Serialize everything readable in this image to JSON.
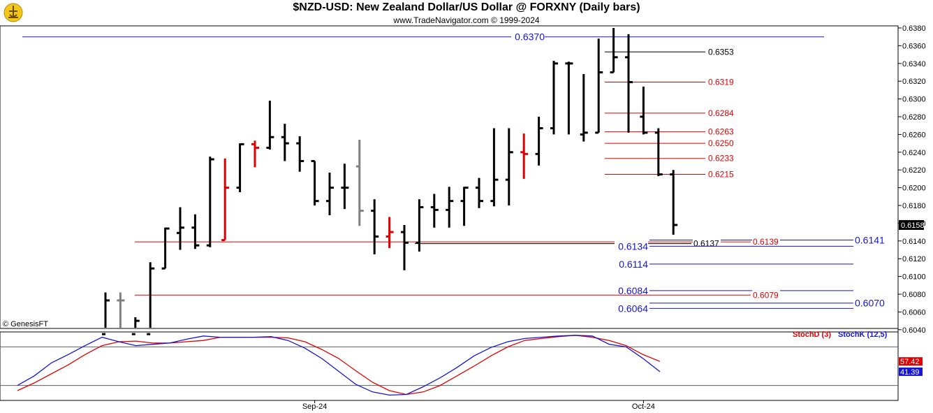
{
  "header": {
    "title": "$NZD-USD:  New Zealand Dollar/US Dollar @ FORXNY  (Daily bars)",
    "subtitle": "www.TradeNavigator.com © 1999-2024",
    "credit": "© GenesisFT"
  },
  "colors": {
    "bull": "#000000",
    "reversal": "#e00000",
    "neutral": "#808080",
    "blue": "#1515d6",
    "red": "#e00000"
  },
  "chart_data": [
    {
      "type": "ohlc",
      "title": "$NZD-USD:  New Zealand Dollar/US Dollar @ FORXNY  (Daily bars)",
      "ylim": [
        0.6034,
        0.6383
      ],
      "yticks": [
        "0.6380",
        "0.6360",
        "0.6340",
        "0.6320",
        "0.6300",
        "0.6280",
        "0.6260",
        "0.6240",
        "0.6220",
        "0.6200",
        "0.6180",
        "0.6160",
        "0.6140",
        "0.6120",
        "0.6100",
        "0.6080",
        "0.6060",
        "0.6040"
      ],
      "xlabels": [
        {
          "label": "Sep-24",
          "index": 14
        },
        {
          "label": "Oct-24",
          "index": 36
        }
      ],
      "last_price": "0.6158",
      "bars": [
        {
          "o": 0.6035,
          "h": 0.6082,
          "l": 0.6035,
          "c": 0.6073,
          "color": "black"
        },
        {
          "o": 0.6073,
          "h": 0.6082,
          "l": 0.6035,
          "c": 0.6073,
          "color": "gray"
        },
        {
          "o": 0.6035,
          "h": 0.6054,
          "l": 0.6035,
          "c": 0.605,
          "color": "black"
        },
        {
          "o": 0.6035,
          "h": 0.6116,
          "l": 0.6035,
          "c": 0.6109,
          "color": "black"
        },
        {
          "o": 0.6109,
          "h": 0.6155,
          "l": 0.6109,
          "c": 0.6154,
          "color": "black"
        },
        {
          "o": 0.6149,
          "h": 0.6178,
          "l": 0.613,
          "c": 0.6155,
          "color": "black"
        },
        {
          "o": 0.6155,
          "h": 0.617,
          "l": 0.6131,
          "c": 0.6135,
          "color": "black"
        },
        {
          "o": 0.6135,
          "h": 0.6235,
          "l": 0.6133,
          "c": 0.6232,
          "color": "black"
        },
        {
          "o": 0.6141,
          "h": 0.6233,
          "l": 0.6141,
          "c": 0.62,
          "color": "red"
        },
        {
          "o": 0.62,
          "h": 0.625,
          "l": 0.6195,
          "c": 0.6249,
          "color": "black"
        },
        {
          "o": 0.6249,
          "h": 0.6253,
          "l": 0.6223,
          "c": 0.6245,
          "color": "red"
        },
        {
          "o": 0.6245,
          "h": 0.6298,
          "l": 0.6243,
          "c": 0.6257,
          "color": "black"
        },
        {
          "o": 0.6257,
          "h": 0.6272,
          "l": 0.623,
          "c": 0.625,
          "color": "black"
        },
        {
          "o": 0.625,
          "h": 0.6258,
          "l": 0.6218,
          "c": 0.623,
          "color": "black"
        },
        {
          "o": 0.623,
          "h": 0.623,
          "l": 0.618,
          "c": 0.6185,
          "color": "black"
        },
        {
          "o": 0.6185,
          "h": 0.6217,
          "l": 0.6169,
          "c": 0.62,
          "color": "black"
        },
        {
          "o": 0.62,
          "h": 0.6227,
          "l": 0.6176,
          "c": 0.62,
          "color": "black"
        },
        {
          "o": 0.6224,
          "h": 0.6254,
          "l": 0.6157,
          "c": 0.6174,
          "color": "gray"
        },
        {
          "o": 0.6174,
          "h": 0.6187,
          "l": 0.6125,
          "c": 0.6145,
          "color": "black"
        },
        {
          "o": 0.6145,
          "h": 0.6167,
          "l": 0.6132,
          "c": 0.615,
          "color": "red"
        },
        {
          "o": 0.615,
          "h": 0.6158,
          "l": 0.6107,
          "c": 0.6138,
          "color": "black"
        },
        {
          "o": 0.6138,
          "h": 0.6187,
          "l": 0.6128,
          "c": 0.6178,
          "color": "black"
        },
        {
          "o": 0.6178,
          "h": 0.6193,
          "l": 0.6155,
          "c": 0.6175,
          "color": "black"
        },
        {
          "o": 0.6175,
          "h": 0.6201,
          "l": 0.6155,
          "c": 0.6185,
          "color": "black"
        },
        {
          "o": 0.6185,
          "h": 0.6201,
          "l": 0.6157,
          "c": 0.62,
          "color": "black"
        },
        {
          "o": 0.62,
          "h": 0.6211,
          "l": 0.6177,
          "c": 0.6185,
          "color": "black"
        },
        {
          "o": 0.6185,
          "h": 0.6267,
          "l": 0.6179,
          "c": 0.6209,
          "color": "black"
        },
        {
          "o": 0.6209,
          "h": 0.6267,
          "l": 0.618,
          "c": 0.624,
          "color": "black"
        },
        {
          "o": 0.624,
          "h": 0.6261,
          "l": 0.621,
          "c": 0.6238,
          "color": "red"
        },
        {
          "o": 0.6238,
          "h": 0.628,
          "l": 0.6225,
          "c": 0.6267,
          "color": "black"
        },
        {
          "o": 0.6267,
          "h": 0.6343,
          "l": 0.626,
          "c": 0.634,
          "color": "black"
        },
        {
          "o": 0.634,
          "h": 0.6342,
          "l": 0.626,
          "c": 0.634,
          "color": "black"
        },
        {
          "o": 0.626,
          "h": 0.6328,
          "l": 0.6252,
          "c": 0.6262,
          "color": "black"
        },
        {
          "o": 0.6262,
          "h": 0.6368,
          "l": 0.6262,
          "c": 0.633,
          "color": "black"
        },
        {
          "o": 0.633,
          "h": 0.638,
          "l": 0.633,
          "c": 0.6347,
          "color": "black"
        },
        {
          "o": 0.6347,
          "h": 0.6373,
          "l": 0.6262,
          "c": 0.6319,
          "color": "black"
        },
        {
          "o": 0.628,
          "h": 0.6314,
          "l": 0.626,
          "c": 0.6262,
          "color": "black"
        },
        {
          "o": 0.6262,
          "h": 0.6267,
          "l": 0.6213,
          "c": 0.6215,
          "color": "black"
        },
        {
          "o": 0.6215,
          "h": 0.622,
          "l": 0.6147,
          "c": 0.6158,
          "color": "black"
        }
      ],
      "levels": [
        {
          "value": 0.637,
          "label": "0.6370",
          "color": "blue",
          "from": 32,
          "to": 1180,
          "labelSide": "left",
          "labelX": 780
        },
        {
          "value": 0.6353,
          "label": "0.6353",
          "color": "black",
          "from": 866,
          "to": 1010,
          "labelSide": "right",
          "labelX": 1014
        },
        {
          "value": 0.6319,
          "label": "0.6319",
          "color": "red",
          "from": 866,
          "to": 1010,
          "labelSide": "right",
          "labelX": 1014
        },
        {
          "value": 0.6284,
          "label": "0.6284",
          "color": "red",
          "from": 866,
          "to": 1010,
          "labelSide": "right",
          "labelX": 1014
        },
        {
          "value": 0.6263,
          "label": "0.6263",
          "color": "red",
          "from": 866,
          "to": 1010,
          "labelSide": "right",
          "labelX": 1014
        },
        {
          "value": 0.625,
          "label": "0.6250",
          "color": "red",
          "from": 866,
          "to": 1010,
          "labelSide": "right",
          "labelX": 1014
        },
        {
          "value": 0.6233,
          "label": "0.6233",
          "color": "red",
          "from": 866,
          "to": 1010,
          "labelSide": "right",
          "labelX": 1014
        },
        {
          "value": 0.6215,
          "label": "0.6215",
          "color": "red",
          "from": 866,
          "to": 1010,
          "labelSide": "right",
          "labelX": 1014
        },
        {
          "value": 0.6141,
          "label": "0.6141",
          "color": "blue",
          "from": 930,
          "to": 1222,
          "labelSide": "right",
          "labelX": 1224
        },
        {
          "value": 0.6139,
          "label": "0.6139",
          "color": "red",
          "from": 193,
          "to": 1075,
          "labelSide": "right",
          "labelX": 1078
        },
        {
          "value": 0.6137,
          "label": "0.6137",
          "color": "black",
          "from": 594,
          "to": 990,
          "labelSide": "right",
          "labelX": 993
        },
        {
          "value": 0.6134,
          "label": "0.6134",
          "color": "blue",
          "from": 930,
          "to": 1222,
          "labelSide": "left",
          "labelX": 928
        },
        {
          "value": 0.6114,
          "label": "0.6114",
          "color": "blue",
          "from": 930,
          "to": 1222,
          "labelSide": "left",
          "labelX": 928
        },
        {
          "value": 0.6084,
          "label": "0.6084",
          "color": "blue",
          "from": 930,
          "to": 1222,
          "labelSide": "left",
          "labelX": 928
        },
        {
          "value": 0.6079,
          "label": "0.6079",
          "color": "red",
          "from": 193,
          "to": 1075,
          "labelSide": "right",
          "labelX": 1078
        },
        {
          "value": 0.607,
          "label": "0.6070",
          "color": "blue",
          "from": 930,
          "to": 1222,
          "labelSide": "right",
          "labelX": 1224
        },
        {
          "value": 0.6064,
          "label": "0.6064",
          "color": "blue",
          "from": 930,
          "to": 1222,
          "labelSide": "left",
          "labelX": 928
        }
      ]
    },
    {
      "type": "line",
      "title": "",
      "ylim": [
        0,
        100
      ],
      "legend": [
        "StochD (3)",
        "StochK (12,5)"
      ],
      "series": [
        {
          "name": "StochD (3)",
          "color": "red",
          "last": "57.42",
          "values": [
            12,
            24,
            38,
            52,
            68,
            82,
            88,
            89,
            86,
            86,
            88,
            90,
            95,
            95,
            95,
            95,
            94,
            88,
            76,
            62,
            43,
            25,
            12,
            6,
            10,
            20,
            35,
            50,
            66,
            80,
            90,
            93,
            96,
            98,
            95,
            90,
            82,
            68,
            57.42
          ]
        },
        {
          "name": "StochK (12,5)",
          "color": "blue",
          "last": "41.39",
          "values": [
            20,
            35,
            55,
            68,
            82,
            95,
            88,
            82,
            84,
            86,
            92,
            97,
            95,
            95,
            95,
            96,
            90,
            78,
            62,
            42,
            22,
            10,
            5,
            6,
            18,
            32,
            48,
            66,
            79,
            88,
            93,
            95,
            97,
            98,
            97,
            84,
            80,
            62,
            41.39
          ]
        }
      ],
      "hlines": [
        80,
        20
      ]
    }
  ]
}
